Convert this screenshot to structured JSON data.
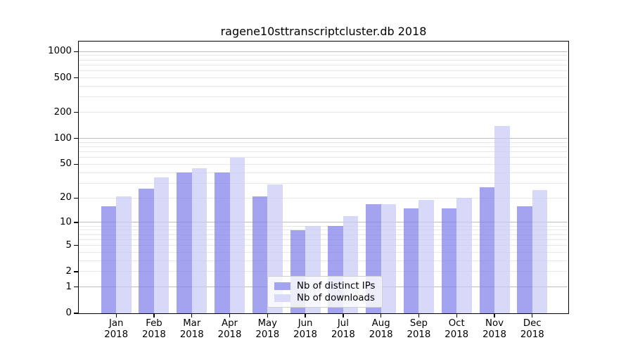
{
  "title": "ragene10sttranscriptcluster.db 2018",
  "chart_data": {
    "type": "bar",
    "title": "ragene10sttranscriptcluster.db 2018",
    "categories": [
      "Jan",
      "Feb",
      "Mar",
      "Apr",
      "May",
      "Jun",
      "Jul",
      "Aug",
      "Sep",
      "Oct",
      "Nov",
      "Dec"
    ],
    "x_year_label": "2018",
    "series": [
      {
        "name": "Nb of distinct IPs",
        "color": "rgba(127,127,234,0.72)",
        "legend_color": "#a3a3f0",
        "values": [
          16,
          26,
          40,
          40,
          21,
          8,
          9,
          17,
          15,
          15,
          27,
          16
        ]
      },
      {
        "name": "Nb of downloads",
        "color": "rgba(201,201,245,0.72)",
        "legend_color": "#d9d9f8",
        "values": [
          21,
          35,
          45,
          60,
          29,
          9,
          12,
          17,
          19,
          20,
          140,
          25
        ]
      }
    ],
    "y_axis": {
      "scale": "log1p",
      "tick_values": [
        0,
        1,
        2,
        5,
        10,
        20,
        50,
        100,
        200,
        500,
        1000
      ],
      "tick_labels": [
        "0",
        "1",
        "2",
        "5",
        "10",
        "20",
        "50",
        "100",
        "200",
        "500",
        "1000"
      ],
      "range": [
        0,
        1350
      ]
    },
    "grid": {
      "enabled": true,
      "major_color": "#bdbdbd",
      "minor_color": "#e8e8e8"
    },
    "legend_position": "lower center",
    "colors": {
      "distinct_ips_bar": "#a3a3f0",
      "downloads_bar": "#d9d9f8",
      "axis": "#000000",
      "background": "#ffffff"
    }
  }
}
